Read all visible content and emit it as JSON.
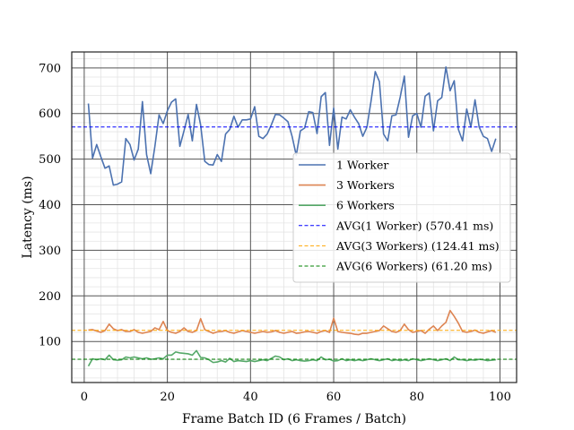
{
  "chart_data": {
    "type": "line",
    "title": "",
    "xlabel": "Frame Batch ID (6 Frames / Batch)",
    "ylabel": "Latency (ms)",
    "xlim": [
      -3,
      104
    ],
    "ylim": [
      10,
      735
    ],
    "x_ticks": [
      0,
      20,
      40,
      60,
      80,
      100
    ],
    "y_ticks": [
      100,
      200,
      300,
      400,
      500,
      600,
      700
    ],
    "grid": true,
    "minor_grid": true,
    "legend_position": "center-right",
    "x": [
      1,
      2,
      3,
      4,
      5,
      6,
      7,
      8,
      9,
      10,
      11,
      12,
      13,
      14,
      15,
      16,
      17,
      18,
      19,
      20,
      21,
      22,
      23,
      24,
      25,
      26,
      27,
      28,
      29,
      30,
      31,
      32,
      33,
      34,
      35,
      36,
      37,
      38,
      39,
      40,
      41,
      42,
      43,
      44,
      45,
      46,
      47,
      48,
      49,
      50,
      51,
      52,
      53,
      54,
      55,
      56,
      57,
      58,
      59,
      60,
      61,
      62,
      63,
      64,
      65,
      66,
      67,
      68,
      69,
      70,
      71,
      72,
      73,
      74,
      75,
      76,
      77,
      78,
      79,
      80,
      81,
      82,
      83,
      84,
      85,
      86,
      87,
      88,
      89,
      90,
      91,
      92,
      93,
      94,
      95,
      96,
      97,
      98,
      99
    ],
    "series": [
      {
        "name": "1 Worker",
        "color": "#4c72b0",
        "style": "solid",
        "values": [
          622,
          502,
          532,
          505,
          480,
          485,
          443,
          445,
          450,
          545,
          532,
          498,
          522,
          626,
          510,
          468,
          528,
          597,
          578,
          606,
          625,
          632,
          528,
          562,
          598,
          540,
          620,
          575,
          495,
          488,
          487,
          510,
          495,
          555,
          565,
          594,
          570,
          586,
          586,
          588,
          615,
          550,
          545,
          555,
          575,
          598,
          597,
          590,
          582,
          550,
          508,
          562,
          568,
          604,
          602,
          556,
          637,
          646,
          530,
          612,
          522,
          592,
          588,
          608,
          592,
          578,
          550,
          570,
          628,
          692,
          670,
          555,
          540,
          595,
          597,
          636,
          682,
          548,
          595,
          600,
          570,
          638,
          645,
          562,
          628,
          635,
          702,
          650,
          672,
          565,
          540,
          610,
          570,
          630,
          570,
          550,
          545,
          517,
          545
        ]
      },
      {
        "name": "3 Workers",
        "color": "#dd8452",
        "style": "solid",
        "values": [
          125,
          126,
          123,
          120,
          124,
          138,
          128,
          124,
          126,
          122,
          122,
          126,
          120,
          118,
          120,
          122,
          130,
          126,
          144,
          124,
          120,
          118,
          122,
          130,
          122,
          120,
          124,
          150,
          126,
          122,
          118,
          121,
          122,
          124,
          120,
          118,
          121,
          124,
          122,
          120,
          118,
          120,
          122,
          120,
          121,
          124,
          120,
          118,
          120,
          122,
          118,
          119,
          121,
          122,
          120,
          118,
          122,
          124,
          120,
          151,
          122,
          120,
          119,
          118,
          116,
          115,
          118,
          118,
          120,
          122,
          124,
          134,
          128,
          122,
          120,
          124,
          138,
          126,
          120,
          122,
          124,
          118,
          127,
          134,
          124,
          134,
          142,
          168,
          155,
          140,
          122,
          120,
          122,
          125,
          120,
          118,
          121,
          124,
          120
        ]
      },
      {
        "name": "6 Workers",
        "color": "#55a868",
        "style": "solid",
        "values": [
          46,
          62,
          60,
          62,
          60,
          70,
          60,
          59,
          60,
          66,
          64,
          66,
          64,
          62,
          64,
          61,
          62,
          64,
          62,
          70,
          70,
          77,
          75,
          74,
          73,
          70,
          80,
          65,
          64,
          60,
          54,
          55,
          58,
          55,
          63,
          56,
          58,
          57,
          56,
          58,
          56,
          58,
          60,
          58,
          63,
          68,
          66,
          60,
          62,
          58,
          60,
          58,
          57,
          58,
          60,
          58,
          66,
          60,
          61,
          57,
          58,
          62,
          58,
          60,
          58,
          60,
          58,
          60,
          62,
          60,
          58,
          60,
          62,
          58,
          60,
          58,
          60,
          58,
          62,
          60,
          58,
          60,
          62,
          60,
          58,
          60,
          62,
          58,
          66,
          60,
          60,
          58,
          60,
          59,
          61,
          60,
          58,
          59,
          60
        ]
      },
      {
        "name": "AVG(1 Worker) (570.41 ms)",
        "color": "#0000ff",
        "style": "dashed",
        "value": 570.41
      },
      {
        "name": "AVG(3 Workers) (124.41 ms)",
        "color": "#ffa500",
        "style": "dashed",
        "value": 124.41
      },
      {
        "name": "AVG(6 Workers) (61.20 ms)",
        "color": "#008000",
        "style": "dashed",
        "value": 61.2
      }
    ]
  }
}
